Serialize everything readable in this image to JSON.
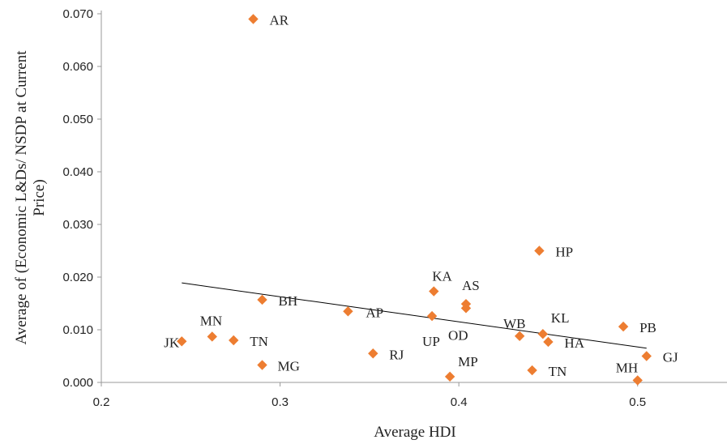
{
  "chart_data": {
    "type": "scatter",
    "title": "",
    "xlabel": "Average HDI",
    "ylabel": "Average of (Economic L&Ds/ NSDP at Current Price)",
    "xlim": [
      0.2,
      0.55
    ],
    "ylim": [
      0,
      0.07
    ],
    "x_ticks": [
      "0.2",
      "0.3",
      "0.4",
      "0.5"
    ],
    "y_ticks": [
      "0.000",
      "0.010",
      "0.020",
      "0.030",
      "0.040",
      "0.050",
      "0.060",
      "0.070"
    ],
    "grid": false,
    "legend": "none",
    "marker_color": "#ED7D31",
    "trendline": {
      "x": [
        0.245,
        0.505
      ],
      "y": [
        0.0189,
        0.0065
      ],
      "color": "#000000"
    },
    "points": [
      {
        "label": "AR",
        "x": 0.285,
        "y": 0.069
      },
      {
        "label": "HP",
        "x": 0.445,
        "y": 0.025
      },
      {
        "label": "KA",
        "x": 0.386,
        "y": 0.0173
      },
      {
        "label": "AS",
        "x": 0.404,
        "y": 0.0149
      },
      {
        "label": "OD",
        "x": 0.404,
        "y": 0.0141
      },
      {
        "label": "BH",
        "x": 0.29,
        "y": 0.0157
      },
      {
        "label": "AP",
        "x": 0.338,
        "y": 0.0135
      },
      {
        "label": "UP",
        "x": 0.385,
        "y": 0.0126
      },
      {
        "label": "WB",
        "x": 0.434,
        "y": 0.0088
      },
      {
        "label": "KL",
        "x": 0.447,
        "y": 0.0092
      },
      {
        "label": "HA",
        "x": 0.45,
        "y": 0.0077
      },
      {
        "label": "PB",
        "x": 0.492,
        "y": 0.0106
      },
      {
        "label": "GJ",
        "x": 0.505,
        "y": 0.005
      },
      {
        "label": "MH",
        "x": 0.5,
        "y": 0.0004
      },
      {
        "label": "JK",
        "x": 0.245,
        "y": 0.0078
      },
      {
        "label": "MN",
        "x": 0.262,
        "y": 0.0087
      },
      {
        "label": "TN",
        "x": 0.274,
        "y": 0.008
      },
      {
        "label": "MG",
        "x": 0.29,
        "y": 0.0033
      },
      {
        "label": "RJ",
        "x": 0.352,
        "y": 0.0055
      },
      {
        "label": "MP",
        "x": 0.395,
        "y": 0.0011
      },
      {
        "label": "TN",
        "x": 0.441,
        "y": 0.0023
      }
    ]
  }
}
